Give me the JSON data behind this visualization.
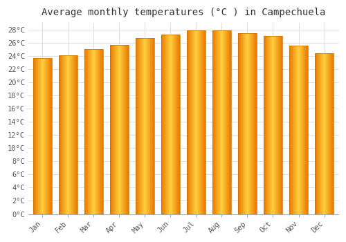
{
  "title": "Average monthly temperatures (°C ) in Campechuela",
  "months": [
    "Jan",
    "Feb",
    "Mar",
    "Apr",
    "May",
    "Jun",
    "Jul",
    "Aug",
    "Sep",
    "Oct",
    "Nov",
    "Dec"
  ],
  "values": [
    23.7,
    24.1,
    25.0,
    25.7,
    26.7,
    27.2,
    27.9,
    27.9,
    27.4,
    27.0,
    25.6,
    24.4
  ],
  "bar_color_center": "#FFD040",
  "bar_color_edge": "#E87800",
  "bar_edge_color": "#C87000",
  "ylim": [
    0,
    29
  ],
  "yticks": [
    0,
    2,
    4,
    6,
    8,
    10,
    12,
    14,
    16,
    18,
    20,
    22,
    24,
    26,
    28
  ],
  "plot_bg_color": "#FFFFFF",
  "fig_bg_color": "#FFFFFF",
  "grid_color": "#DDDDDD",
  "title_fontsize": 10,
  "tick_fontsize": 7.5,
  "font_family": "monospace"
}
